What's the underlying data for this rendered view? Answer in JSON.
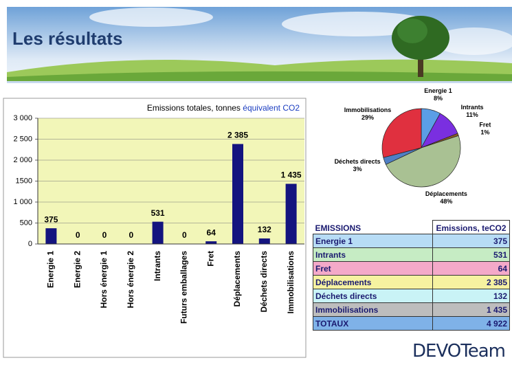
{
  "header": {
    "title": "Les résultats"
  },
  "chart_data": [
    {
      "type": "bar",
      "title": "Emissions totales, tonnes",
      "title_highlight": "équivalent CO2",
      "categories": [
        "Energie 1",
        "Energie 2",
        "Hors énergie 1",
        "Hors énergie 2",
        "Intrants",
        "Futurs emballages",
        "Fret",
        "Déplacements",
        "Déchets directs",
        "Immobilisations"
      ],
      "values": [
        375,
        0,
        0,
        0,
        531,
        0,
        64,
        2385,
        132,
        1435
      ],
      "value_labels": [
        "375",
        "0",
        "0",
        "0",
        "531",
        "0",
        "64",
        "2 385",
        "132",
        "1 435"
      ],
      "color": "#14147f",
      "ylim": [
        0,
        3000
      ],
      "yticks": [
        0,
        500,
        {
          "value": 1000,
          "label": "1 000"
        },
        {
          "value": 1500,
          "label": "1500"
        },
        {
          "value": 2000,
          "label": "2 000"
        },
        {
          "value": 2500,
          "label": "2 500"
        },
        {
          "value": 3000,
          "label": "3 000"
        }
      ],
      "grid": true
    },
    {
      "type": "pie",
      "categories": [
        "Energie 1",
        "Intrants",
        "Fret",
        "Déplacements",
        "Déchets directs",
        "Immobilisations"
      ],
      "values": [
        8,
        11,
        1,
        48,
        3,
        29
      ],
      "value_labels": [
        "8%",
        "11%",
        "1%",
        "48%",
        "3%",
        "29%"
      ],
      "colors": [
        "#5b9ee6",
        "#7a2fe0",
        "#8b5a2b",
        "#a9c193",
        "#4f7fc4",
        "#e0303f"
      ]
    }
  ],
  "table": {
    "header": [
      "EMISSIONS",
      "Emissions, teCO2"
    ],
    "rows": [
      [
        "Energie 1",
        "375"
      ],
      [
        "Intrants",
        "531"
      ],
      [
        "Fret",
        "64"
      ],
      [
        "Déplacements",
        "2 385"
      ],
      [
        "Déchets directs",
        "132"
      ],
      [
        "Immobilisations",
        "1 435"
      ],
      [
        "TOTAUX",
        "4 922"
      ]
    ]
  },
  "footer": {
    "logo": "DEVOTeam"
  }
}
